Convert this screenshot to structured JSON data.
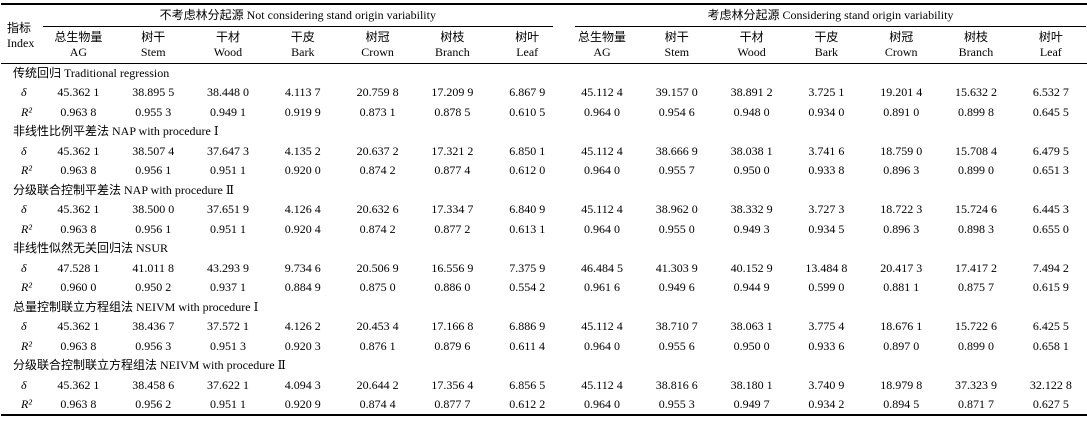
{
  "table": {
    "index_header": {
      "zh": "指标",
      "en": "Index"
    },
    "groups": [
      {
        "label": "不考虑林分起源 Not considering stand origin variability"
      },
      {
        "label": "考虑林分起源 Considering stand origin variability"
      }
    ],
    "columns": [
      {
        "zh": "总生物量",
        "en": "AG"
      },
      {
        "zh": "树干",
        "en": "Stem"
      },
      {
        "zh": "干材",
        "en": "Wood"
      },
      {
        "zh": "干皮",
        "en": "Bark"
      },
      {
        "zh": "树冠",
        "en": "Crown"
      },
      {
        "zh": "树枝",
        "en": "Branch"
      },
      {
        "zh": "树叶",
        "en": "Leaf"
      }
    ],
    "sections": [
      {
        "title": "传统回归 Traditional regression",
        "rows": [
          {
            "label": "δ",
            "values": [
              "45.362 1",
              "38.895 5",
              "38.448 0",
              "4.113 7",
              "20.759 8",
              "17.209 9",
              "6.867 9",
              "45.112 4",
              "39.157 0",
              "38.891 2",
              "3.725 1",
              "19.201 4",
              "15.632 2",
              "6.532 7"
            ]
          },
          {
            "label": "R²",
            "values": [
              "0.963 8",
              "0.955 3",
              "0.949 1",
              "0.919 9",
              "0.873 1",
              "0.878 5",
              "0.610 5",
              "0.964 0",
              "0.954 6",
              "0.948 0",
              "0.934 0",
              "0.891 0",
              "0.899 8",
              "0.645 5"
            ]
          }
        ]
      },
      {
        "title": "非线性比例平差法 NAP with procedure Ⅰ",
        "rows": [
          {
            "label": "δ",
            "values": [
              "45.362 1",
              "38.507 4",
              "37.647 3",
              "4.135 2",
              "20.637 2",
              "17.321 2",
              "6.850 1",
              "45.112 4",
              "38.666 9",
              "38.038 1",
              "3.741 6",
              "18.759 0",
              "15.708 4",
              "6.479 5"
            ]
          },
          {
            "label": "R²",
            "values": [
              "0.963 8",
              "0.956 1",
              "0.951 1",
              "0.920 0",
              "0.874 2",
              "0.877 4",
              "0.612 0",
              "0.964 0",
              "0.955 7",
              "0.950 0",
              "0.933 8",
              "0.896 3",
              "0.899 0",
              "0.651 3"
            ]
          }
        ]
      },
      {
        "title": "分级联合控制平差法 NAP with procedure Ⅱ",
        "rows": [
          {
            "label": "δ",
            "values": [
              "45.362 1",
              "38.500 0",
              "37.651 9",
              "4.126 4",
              "20.632 6",
              "17.334 7",
              "6.840 9",
              "45.112 4",
              "38.962 0",
              "38.332 9",
              "3.727 3",
              "18.722 3",
              "15.724 6",
              "6.445 3"
            ]
          },
          {
            "label": "R²",
            "values": [
              "0.963 8",
              "0.956 1",
              "0.951 1",
              "0.920 4",
              "0.874 2",
              "0.877 2",
              "0.613 1",
              "0.964 0",
              "0.955 0",
              "0.949 3",
              "0.934 5",
              "0.896 3",
              "0.898 3",
              "0.655 0"
            ]
          }
        ]
      },
      {
        "title": "非线性似然无关回归法 NSUR",
        "rows": [
          {
            "label": "δ",
            "values": [
              "47.528 1",
              "41.011 8",
              "43.293 9",
              "9.734 6",
              "20.506 9",
              "16.556 9",
              "7.375 9",
              "46.484 5",
              "41.303 9",
              "40.152 9",
              "13.484 8",
              "20.417 3",
              "17.417 2",
              "7.494 2"
            ]
          },
          {
            "label": "R²",
            "values": [
              "0.960 0",
              "0.950 2",
              "0.937 1",
              "0.884 9",
              "0.875 0",
              "0.886 0",
              "0.554 2",
              "0.961 6",
              "0.949 6",
              "0.944 9",
              "0.599 0",
              "0.881 1",
              "0.875 7",
              "0.615 9"
            ]
          }
        ]
      },
      {
        "title": "总量控制联立方程组法 NEIVM with procedure Ⅰ",
        "rows": [
          {
            "label": "δ",
            "values": [
              "45.362 1",
              "38.436 7",
              "37.572 1",
              "4.126 2",
              "20.453 4",
              "17.166 8",
              "6.886 9",
              "45.112 4",
              "38.710 7",
              "38.063 1",
              "3.775 4",
              "18.676 1",
              "15.722 6",
              "6.425 5"
            ]
          },
          {
            "label": "R²",
            "values": [
              "0.963 8",
              "0.956 3",
              "0.951 3",
              "0.920 3",
              "0.876 1",
              "0.879 6",
              "0.611 4",
              "0.964 0",
              "0.955 6",
              "0.950 0",
              "0.933 6",
              "0.897 0",
              "0.899 0",
              "0.658 1"
            ]
          }
        ]
      },
      {
        "title": "分级联合控制联立方程组法 NEIVM with procedure Ⅱ",
        "rows": [
          {
            "label": "δ",
            "values": [
              "45.362 1",
              "38.458 6",
              "37.622 1",
              "4.094 3",
              "20.644 2",
              "17.356 4",
              "6.856 5",
              "45.112 4",
              "38.816 6",
              "38.180 1",
              "3.740 9",
              "18.979 8",
              "37.323 9",
              "32.122 8"
            ]
          },
          {
            "label": "R²",
            "values": [
              "0.963 8",
              "0.956 2",
              "0.951 1",
              "0.920 9",
              "0.874 4",
              "0.877 7",
              "0.612 2",
              "0.964 0",
              "0.955 3",
              "0.949 7",
              "0.934 2",
              "0.894 5",
              "0.871 7",
              "0.627 5"
            ]
          }
        ]
      }
    ]
  }
}
